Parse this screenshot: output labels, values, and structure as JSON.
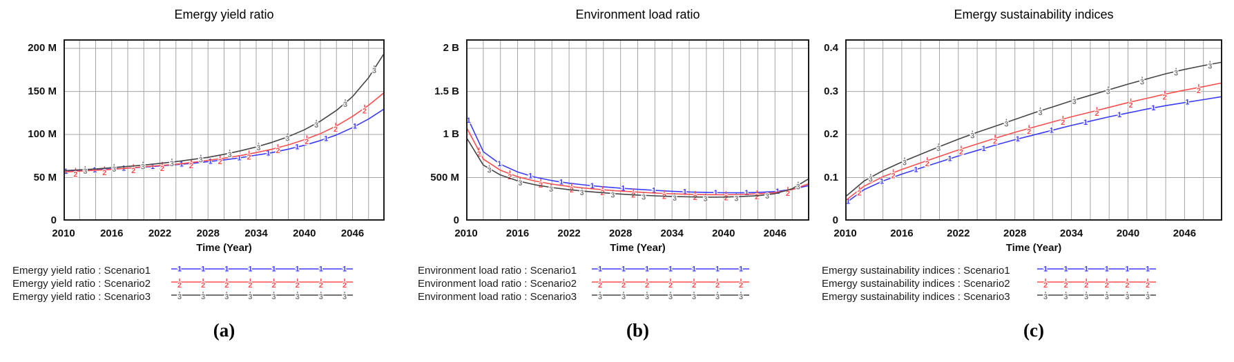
{
  "figure": {
    "captions": [
      "(a)",
      "(b)",
      "(c)"
    ]
  },
  "chart_data": [
    {
      "type": "line",
      "title": "Emergy yield ratio",
      "xlabel": "Time (Year)",
      "x_start": 2010,
      "x_end": 2050,
      "x_step": 2,
      "xtick_labels": [
        "2010",
        "2016",
        "2022",
        "2028",
        "2034",
        "2040",
        "2046"
      ],
      "xtick_years": [
        2010,
        2016,
        2022,
        2028,
        2034,
        2040,
        2046
      ],
      "value_unit": "M",
      "ylim": [
        0,
        210.5
      ],
      "yticks": [
        {
          "v": 0,
          "label": "0"
        },
        {
          "v": 50,
          "label": "50 M"
        },
        {
          "v": 100,
          "label": "100 M"
        },
        {
          "v": 150,
          "label": "150 M"
        },
        {
          "v": 200,
          "label": "200 M"
        }
      ],
      "grid": true,
      "legend_position": "below",
      "series": [
        {
          "name": "Emergy yield ratio : Scenario1",
          "marker": "1",
          "color": "#3a3aff",
          "marker_color": "#3a3aff",
          "values": [
            57,
            58,
            59,
            60,
            61,
            62,
            63.5,
            65,
            66.5,
            68.5,
            70.5,
            73,
            76,
            79,
            83,
            87.5,
            93,
            99.5,
            108,
            118,
            130
          ]
        },
        {
          "name": "Emergy yield ratio : Scenario2",
          "marker": "2",
          "color": "#ff4d4d",
          "marker_color": "#ff4d4d",
          "values": [
            56.5,
            57.5,
            58.5,
            59.5,
            61,
            62.5,
            64,
            65.5,
            67.5,
            70,
            72.5,
            75.5,
            79,
            83,
            88,
            94,
            101,
            110,
            121,
            134,
            149
          ]
        },
        {
          "name": "Emergy yield ratio : Scenario3",
          "marker": "3",
          "color": "#444444",
          "marker_color": "#7a7a7a",
          "values": [
            58,
            59,
            60,
            61.5,
            63,
            64.5,
            66.5,
            68.5,
            71,
            73.5,
            77,
            81,
            85.5,
            91,
            97.5,
            105.5,
            115.5,
            128,
            144,
            166,
            195
          ]
        }
      ]
    },
    {
      "type": "line",
      "title": "Environment load ratio",
      "xlabel": "Time (Year)",
      "x_start": 2010,
      "x_end": 2050,
      "x_step": 2,
      "xtick_labels": [
        "2010",
        "2016",
        "2022",
        "2028",
        "2034",
        "2040",
        "2046"
      ],
      "xtick_years": [
        2010,
        2016,
        2022,
        2028,
        2034,
        2040,
        2046
      ],
      "value_unit": "M",
      "ylim": [
        0,
        2105
      ],
      "yticks": [
        {
          "v": 0,
          "label": "0"
        },
        {
          "v": 500,
          "label": "500 M"
        },
        {
          "v": 1000,
          "label": "1 B"
        },
        {
          "v": 1500,
          "label": "1.5 B"
        },
        {
          "v": 2000,
          "label": "2 B"
        }
      ],
      "grid": true,
      "legend_position": "below",
      "series": [
        {
          "name": "Environment load ratio : Scenario1",
          "marker": "1",
          "color": "#3a3aff",
          "marker_color": "#3a3aff",
          "values": [
            1230,
            800,
            655,
            565,
            505,
            465,
            435,
            412,
            393,
            377,
            363,
            351,
            341,
            333,
            327,
            324,
            323,
            327,
            338,
            362,
            410
          ]
        },
        {
          "name": "Environment load ratio : Scenario2",
          "marker": "2",
          "color": "#ff4d4d",
          "marker_color": "#ff4d4d",
          "values": [
            1090,
            715,
            585,
            510,
            460,
            424,
            397,
            376,
            358,
            343,
            331,
            320,
            312,
            306,
            302,
            301,
            304,
            311,
            326,
            360,
            430
          ]
        },
        {
          "name": "Environment load ratio : Scenario3",
          "marker": "3",
          "color": "#444444",
          "marker_color": "#7a7a7a",
          "values": [
            970,
            645,
            530,
            463,
            417,
            384,
            359,
            339,
            323,
            309,
            297,
            288,
            281,
            276,
            273,
            274,
            279,
            290,
            313,
            370,
            490
          ]
        }
      ]
    },
    {
      "type": "line",
      "title": "Emergy sustainability indices",
      "xlabel": "Time (Year)",
      "x_start": 2010,
      "x_end": 2050,
      "x_step": 2,
      "xtick_labels": [
        "2010",
        "2016",
        "2022",
        "2028",
        "2034",
        "2040",
        "2046"
      ],
      "xtick_years": [
        2010,
        2016,
        2022,
        2028,
        2034,
        2040,
        2046
      ],
      "value_unit": "",
      "ylim": [
        0,
        0.421
      ],
      "yticks": [
        {
          "v": 0,
          "label": "0"
        },
        {
          "v": 0.1,
          "label": "0.1"
        },
        {
          "v": 0.2,
          "label": "0.2"
        },
        {
          "v": 0.3,
          "label": "0.3"
        },
        {
          "v": 0.4,
          "label": "0.4"
        }
      ],
      "grid": true,
      "legend_position": "below",
      "series": [
        {
          "name": "Emergy sustainability indices : Scenario1",
          "marker": "1",
          "color": "#3a3aff",
          "marker_color": "#3a3aff",
          "values": [
            0.04,
            0.072,
            0.092,
            0.108,
            0.122,
            0.136,
            0.15,
            0.163,
            0.176,
            0.188,
            0.199,
            0.21,
            0.221,
            0.231,
            0.241,
            0.25,
            0.259,
            0.267,
            0.274,
            0.281,
            0.288
          ]
        },
        {
          "name": "Emergy sustainability indices : Scenario2",
          "marker": "2",
          "color": "#ff4d4d",
          "marker_color": "#ff4d4d",
          "values": [
            0.046,
            0.08,
            0.102,
            0.119,
            0.134,
            0.149,
            0.164,
            0.178,
            0.192,
            0.205,
            0.217,
            0.229,
            0.241,
            0.252,
            0.263,
            0.274,
            0.284,
            0.294,
            0.303,
            0.311,
            0.32
          ]
        },
        {
          "name": "Emergy sustainability indices : Scenario3",
          "marker": "3",
          "color": "#444444",
          "marker_color": "#7a7a7a",
          "values": [
            0.055,
            0.092,
            0.116,
            0.136,
            0.154,
            0.172,
            0.189,
            0.205,
            0.22,
            0.235,
            0.25,
            0.264,
            0.278,
            0.291,
            0.304,
            0.317,
            0.329,
            0.341,
            0.351,
            0.36,
            0.368
          ]
        }
      ]
    }
  ],
  "style_colors": {
    "series1": "#3a3aff",
    "series2": "#ff4d4d",
    "series3": "#444444",
    "gridline": "#a3a3a3",
    "plot_border": "#1c1c1c"
  }
}
